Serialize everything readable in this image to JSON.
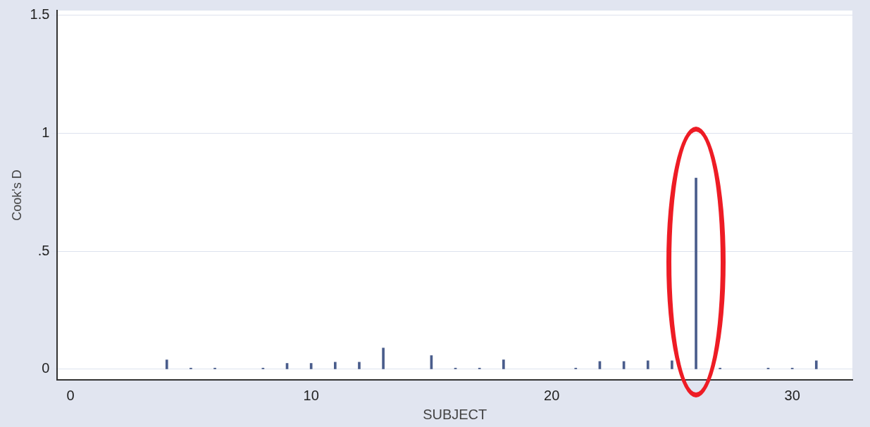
{
  "chart_data": {
    "type": "bar",
    "xlabel": "SUBJECT",
    "ylabel": "Cook's D",
    "x": [
      4,
      5,
      6,
      8,
      9,
      10,
      11,
      12,
      13,
      15,
      16,
      17,
      18,
      21,
      22,
      23,
      24,
      25,
      26,
      27,
      29,
      30,
      31
    ],
    "values": [
      0.04,
      0.005,
      0.005,
      0.005,
      0.025,
      0.025,
      0.03,
      0.03,
      0.09,
      0.058,
      0.005,
      0.005,
      0.04,
      0.005,
      0.033,
      0.033,
      0.036,
      0.036,
      0.81,
      0.005,
      0.005,
      0.005,
      0.036
    ],
    "color": "#4a5d8c",
    "xlim": [
      -0.55,
      32.5
    ],
    "xticks": [
      0,
      10,
      20,
      30
    ],
    "ylim": [
      -0.045,
      1.52
    ],
    "yticks": [
      0,
      {
        "value": 0.5,
        "label": ".5"
      },
      1,
      1.5
    ],
    "grid": "y"
  }
}
